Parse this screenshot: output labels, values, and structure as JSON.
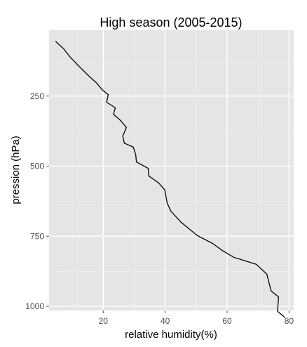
{
  "chart_data": {
    "type": "line",
    "title": "High season (2005-2015)",
    "xlabel": "relative humidity(%)",
    "ylabel": "pression (hPa)",
    "xlim": [
      2.5,
      81.5
    ],
    "ylim": [
      1015,
      15
    ],
    "y_reversed": true,
    "x_ticks": [
      20,
      40,
      60,
      80
    ],
    "x_tick_labels": [
      "20",
      "40",
      "60",
      "80"
    ],
    "y_ticks": [
      250,
      500,
      750,
      1000
    ],
    "y_tick_labels": [
      "250",
      "500",
      "750",
      "1000"
    ],
    "grid": true,
    "background": "#e5e5e5",
    "grid_color": "#ffffff",
    "line_color": "#000000",
    "series": [
      {
        "x": [
          4.6,
          7.1,
          9.4,
          12.3,
          15.3,
          17.8,
          19.7,
          21.6,
          21.1,
          23.9,
          23.3,
          25.4,
          27.5,
          26.3,
          26.8,
          29.7,
          30.5,
          30.7,
          34.5,
          34.7,
          37.9,
          39.9,
          40.6,
          41.8,
          45.1,
          50.3,
          55.5,
          58.3,
          62.1,
          69.4,
          72.8,
          74.2,
          76.6,
          76.3,
          78.7
        ],
        "y": [
          55,
          80,
          112,
          145,
          178,
          203,
          228,
          245,
          272,
          292,
          315,
          335,
          362,
          393,
          418,
          432,
          460,
          485,
          508,
          535,
          560,
          585,
          630,
          660,
          700,
          747,
          777,
          800,
          825,
          850,
          885,
          945,
          967,
          1018,
          1040
        ]
      }
    ]
  }
}
